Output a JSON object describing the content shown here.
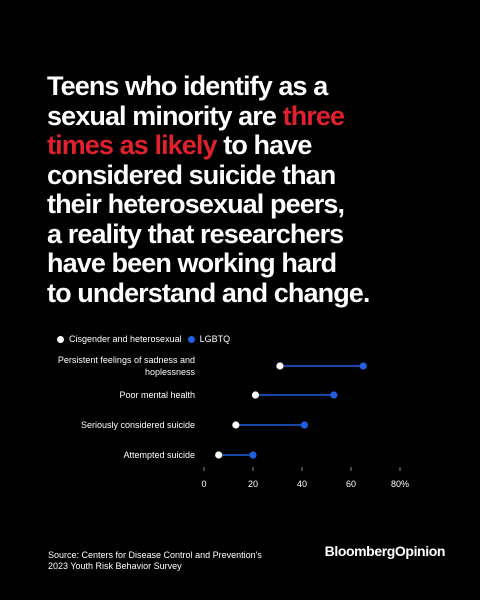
{
  "headline": {
    "line1": "Teens who identify as a",
    "line2_a": "sexual minority are ",
    "line2_b": "three",
    "line3_a": "times as likely",
    "line3_b": " to have",
    "line4": "considered suicide than",
    "line5": "their heterosexual peers,",
    "line6": "a reality that researchers",
    "line7": "have been working hard",
    "line8": "to understand and change."
  },
  "colors": {
    "background": "#000000",
    "highlight": "#e0212c",
    "series_a": "#ffffff",
    "series_b": "#1f5fe0"
  },
  "chart_data": {
    "type": "dumbbell",
    "categories": [
      "Persistent feelings of sadness and hoplessness",
      "Poor mental health",
      "Seriously considered suicide",
      "Attempted suicide"
    ],
    "category_lines": [
      [
        "Persistent feelings of sadness and",
        "hoplessness"
      ],
      [
        "Poor mental health"
      ],
      [
        "Seriously considered suicide"
      ],
      [
        "Attempted suicide"
      ]
    ],
    "series": [
      {
        "name": "Cisgender and heterosexual",
        "values": [
          31,
          21,
          13,
          6
        ]
      },
      {
        "name": "LGBTQ",
        "values": [
          65,
          53,
          41,
          20
        ]
      }
    ],
    "xlim": [
      0,
      80
    ],
    "xticks": [
      "0",
      "20",
      "40",
      "60",
      "80%"
    ],
    "xtick_values": [
      0,
      20,
      40,
      60,
      80
    ],
    "legend_position": "top-left"
  },
  "source": {
    "line1": "Source: Centers for Disease Control and Prevention's",
    "line2": "2023 Youth Risk Behavior Survey"
  },
  "brand": {
    "part1": "Bloomberg",
    "part2": "Opinion"
  }
}
